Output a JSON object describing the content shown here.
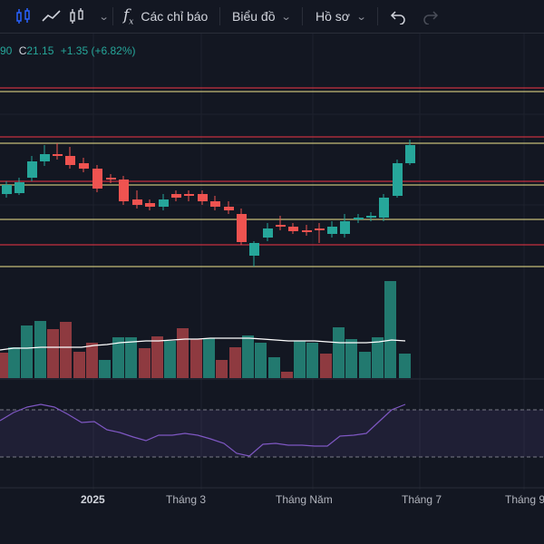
{
  "toolbar": {
    "indicators_label": "Các chỉ báo",
    "chart_label": "Biểu đồ",
    "profile_label": "Hồ sơ"
  },
  "legend": {
    "prev_value_fragment": "90",
    "close_prefix": "C",
    "close_value": "21.15",
    "change": "+1.35",
    "change_pct": "(+6.82%)"
  },
  "colors": {
    "up": "#26a69a",
    "down": "#ef5350",
    "background": "#131722",
    "yellow_level": "#f0e68c",
    "red_level": "#f23645",
    "rsi_line": "#7e57c2",
    "volume_ma": "#ffffff"
  },
  "x_axis": {
    "labels": [
      "2025",
      "Tháng 3",
      "Tháng Năm",
      "Tháng 7",
      "Tháng 9"
    ]
  },
  "icons": [
    "candles-icon",
    "line-chart-icon",
    "bar-style-icon",
    "chevron-down-icon",
    "fx-icon",
    "undo-icon",
    "redo-icon"
  ]
}
